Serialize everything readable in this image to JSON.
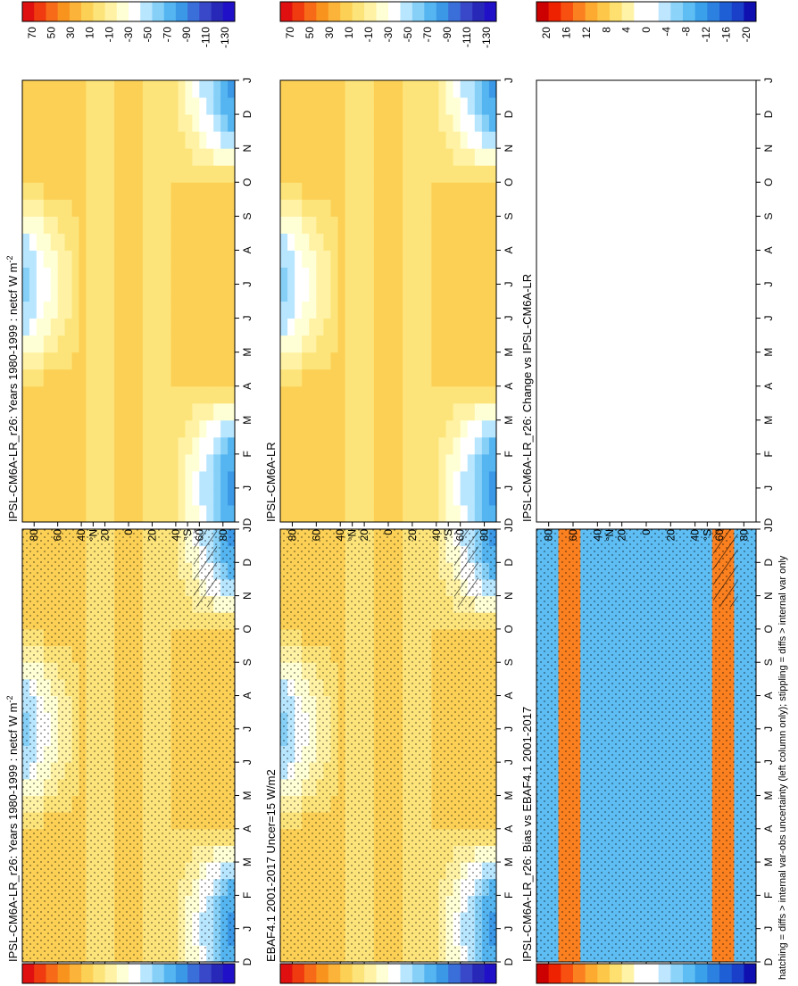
{
  "figure": {
    "footnote": "hatching = diffs > internal var-obs uncertainty (left column only); stippling = diffs > internal var only"
  },
  "axis_labels": {
    "months": [
      "D",
      "J",
      "F",
      "M",
      "A",
      "M",
      "J",
      "J",
      "A",
      "S",
      "O",
      "N",
      "D",
      "J"
    ],
    "lat_ticks": [
      "80",
      "60",
      "40",
      "°N",
      "20",
      "0",
      "20",
      "40",
      "°S",
      "60",
      "80"
    ]
  },
  "colorbars": {
    "abs": [
      "70",
      "50",
      "30",
      "10",
      "-10",
      "-30",
      "-50",
      "-70",
      "-90",
      "-110",
      "-130"
    ],
    "diff": [
      "20",
      "16",
      "12",
      "8",
      "4",
      "0",
      "-4",
      "-8",
      "-12",
      "-16",
      "-20"
    ]
  },
  "panels": [
    {
      "id": "p-model-left",
      "title": "IPSL-CM6A-LR_r26: Years 1980-1999 : netcf W m",
      "sup": "-2"
    },
    {
      "id": "p-obs",
      "title": "EBAF4.1 2001-2017 Uncer=15 W/m2",
      "sup": ""
    },
    {
      "id": "p-bias",
      "title": "IPSL-CM6A-LR_r26: Bias vs EBAF4.1 2001-2017",
      "sup": ""
    },
    {
      "id": "p-model-right",
      "title": "IPSL-CM6A-LR_r26: Years 1980-1999 : netcf W m",
      "sup": "-2"
    },
    {
      "id": "p-model-right2",
      "title": "IPSL-CM6A-LR",
      "sup": ""
    },
    {
      "id": "p-change",
      "title": "IPSL-CM6A-LR_r26: Change vs IPSL-CM6A-LR",
      "sup": ""
    }
  ],
  "chart_data": [
    {
      "type": "heatmap",
      "title": "IPSL-CM6A-LR_r26: Years 1980-1999 : netcf W m-2",
      "units": "W m-2",
      "x_axis": "month",
      "y_axis": "latitude",
      "ylim": [
        -90,
        90
      ],
      "color_levels": [
        70,
        50,
        30,
        10,
        -10,
        -30,
        -50,
        -70,
        -90,
        -110,
        -130
      ]
    },
    {
      "type": "heatmap",
      "title": "EBAF4.1 2001-2017 Uncer=15 W/m2",
      "units": "W m-2",
      "x_axis": "month",
      "y_axis": "latitude",
      "ylim": [
        -90,
        90
      ],
      "color_levels": [
        70,
        50,
        30,
        10,
        -10,
        -30,
        -50,
        -70,
        -90,
        -110,
        -130
      ]
    },
    {
      "type": "heatmap",
      "title": "IPSL-CM6A-LR_r26: Bias vs EBAF4.1 2001-2017",
      "units": "W m-2",
      "x_axis": "month",
      "y_axis": "latitude",
      "ylim": [
        -90,
        90
      ],
      "color_levels": [
        20,
        16,
        12,
        8,
        4,
        0,
        -4,
        -8,
        -12,
        -16,
        -20
      ]
    },
    {
      "type": "heatmap",
      "title": "IPSL-CM6A-LR_r26: Years 1980-1999 : netcf W m-2",
      "units": "W m-2",
      "x_axis": "month",
      "y_axis": "latitude",
      "ylim": [
        -90,
        90
      ],
      "color_levels": [
        70,
        50,
        30,
        10,
        -10,
        -30,
        -50,
        -70,
        -90,
        -110,
        -130
      ]
    },
    {
      "type": "heatmap",
      "title": "IPSL-CM6A-LR",
      "units": "W m-2",
      "x_axis": "month",
      "y_axis": "latitude",
      "ylim": [
        -90,
        90
      ],
      "color_levels": [
        70,
        50,
        30,
        10,
        -10,
        -30,
        -50,
        -70,
        -90,
        -110,
        -130
      ]
    },
    {
      "type": "heatmap",
      "title": "IPSL-CM6A-LR_r26: Change vs IPSL-CM6A-LR",
      "units": "W m-2",
      "x_axis": "month",
      "y_axis": "latitude",
      "ylim": [
        -90,
        90
      ],
      "color_levels": [
        20,
        16,
        12,
        8,
        4,
        0,
        -4,
        -8,
        -12,
        -16,
        -20
      ]
    }
  ]
}
